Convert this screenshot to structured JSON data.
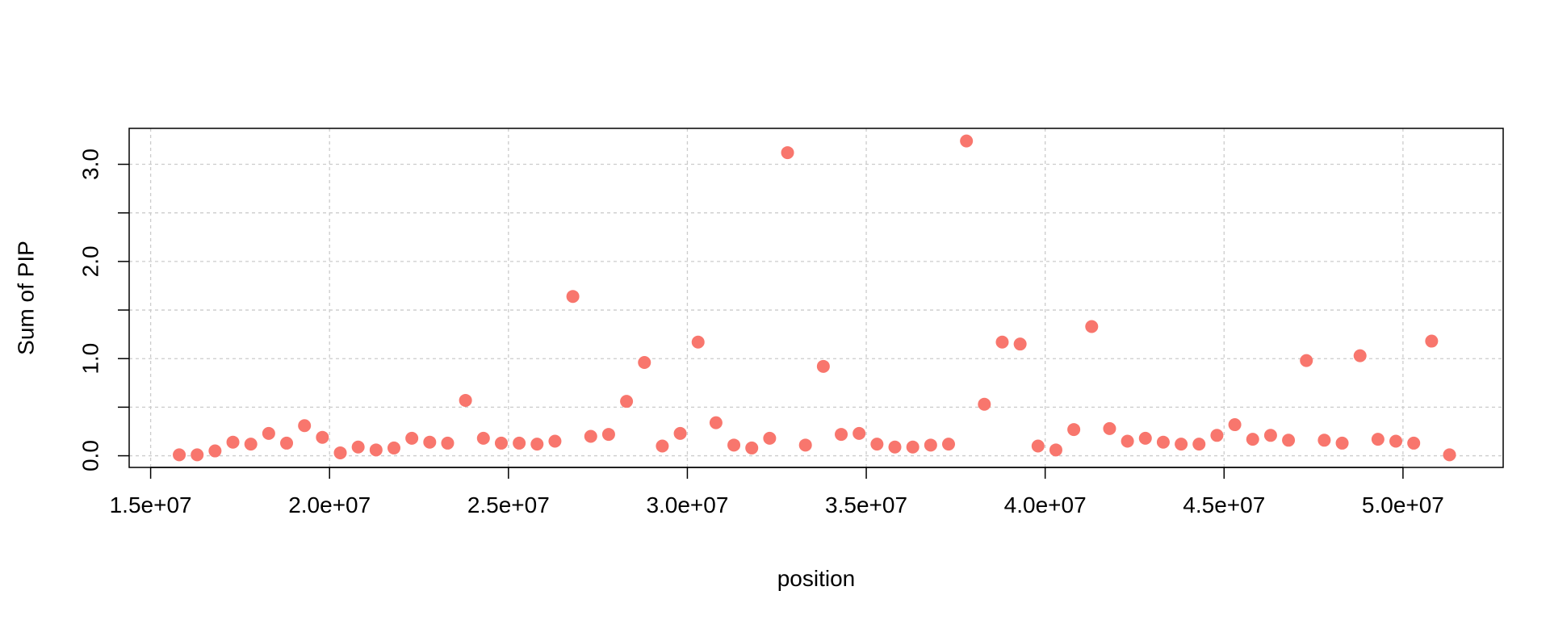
{
  "chart_data": {
    "type": "scatter",
    "title": "",
    "xlabel": "position",
    "ylabel": "Sum of PIP",
    "xlim": [
      14400000,
      52800000
    ],
    "ylim": [
      -0.12,
      3.37
    ],
    "xticks": [
      15000000,
      20000000,
      25000000,
      30000000,
      35000000,
      40000000,
      45000000,
      50000000
    ],
    "xtick_labels": [
      "1.5e+07",
      "2.0e+07",
      "2.5e+07",
      "3.0e+07",
      "3.5e+07",
      "4.0e+07",
      "4.5e+07",
      "5.0e+07"
    ],
    "yticks": [
      0.0,
      0.5,
      1.0,
      1.5,
      2.0,
      2.5,
      3.0
    ],
    "ytick_labels": [
      "0.0",
      "",
      "1.0",
      "",
      "2.0",
      "",
      "3.0"
    ],
    "grid": true,
    "point_color": "#F8766D",
    "series": [
      {
        "x": [
          15800000,
          16300000,
          16800000,
          17300000,
          17800000,
          18300000,
          18800000,
          19300000,
          19800000,
          20300000,
          20800000,
          21300000,
          21800000,
          22300000,
          22800000,
          23300000,
          23800000,
          24300000,
          24800000,
          25300000,
          25800000,
          26300000,
          26800000,
          27300000,
          27800000,
          28300000,
          28800000,
          29300000,
          29800000,
          30300000,
          30800000,
          31300000,
          31800000,
          32300000,
          32800000,
          33300000,
          33800000,
          34300000,
          34800000,
          35300000,
          35800000,
          36300000,
          36800000,
          37300000,
          37800000,
          38300000,
          38800000,
          39300000,
          39800000,
          40300000,
          40800000,
          41300000,
          41800000,
          42300000,
          42800000,
          43300000,
          43800000,
          44300000,
          44800000,
          45300000,
          45800000,
          46300000,
          46800000,
          47300000,
          47800000,
          48300000,
          48800000,
          49300000,
          49800000,
          50300000,
          50800000,
          51300000
        ],
        "y": [
          0.01,
          0.01,
          0.05,
          0.14,
          0.12,
          0.23,
          0.13,
          0.31,
          0.19,
          0.03,
          0.09,
          0.06,
          0.08,
          0.18,
          0.14,
          0.13,
          0.57,
          0.18,
          0.13,
          0.13,
          0.12,
          0.15,
          1.64,
          0.2,
          0.22,
          0.56,
          0.96,
          0.1,
          0.23,
          1.17,
          0.34,
          0.11,
          0.08,
          0.18,
          3.12,
          0.11,
          0.92,
          0.22,
          0.23,
          0.12,
          0.09,
          0.09,
          0.11,
          0.12,
          3.24,
          0.53,
          1.17,
          1.15,
          0.1,
          0.06,
          0.27,
          1.33,
          0.28,
          0.15,
          0.18,
          0.14,
          0.12,
          0.12,
          0.21,
          0.32,
          0.17,
          0.21,
          0.16,
          0.98,
          0.16,
          0.13,
          1.03,
          0.17,
          0.15,
          0.13,
          1.18,
          0.01
        ]
      }
    ]
  }
}
